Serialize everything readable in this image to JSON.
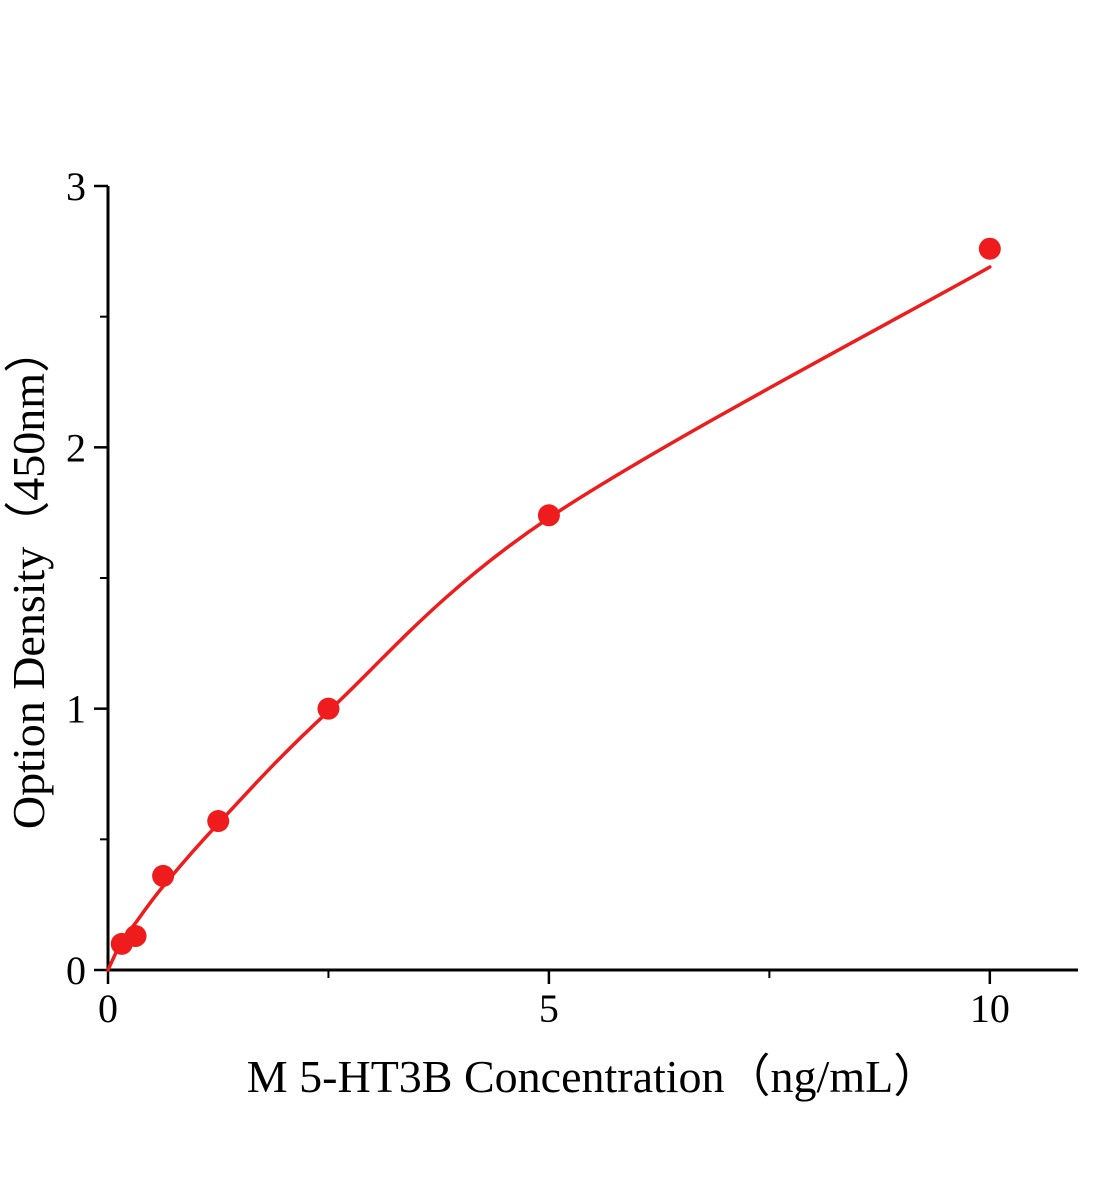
{
  "chart_data": {
    "type": "scatter",
    "title": "",
    "xlabel": "M 5-HT3B Concentration（ng/mL）",
    "ylabel": "Option Density（450nm）",
    "xlim": [
      0,
      11
    ],
    "ylim": [
      0,
      3
    ],
    "x_major_ticks": [
      0,
      5,
      10
    ],
    "x_minor_ticks": [
      2.5,
      7.5
    ],
    "y_major_ticks": [
      0,
      1,
      2,
      3
    ],
    "y_minor_ticks": [
      0.5,
      1.5,
      2.5
    ],
    "grid": false,
    "legend": null,
    "point_color": "#ee1c1c",
    "line_color": "#ee1c1c",
    "axis_color": "#000000",
    "points": [
      {
        "x": 0.156,
        "y": 0.1
      },
      {
        "x": 0.3125,
        "y": 0.13
      },
      {
        "x": 0.625,
        "y": 0.36
      },
      {
        "x": 1.25,
        "y": 0.57
      },
      {
        "x": 2.5,
        "y": 1.0
      },
      {
        "x": 5,
        "y": 1.74
      },
      {
        "x": 10,
        "y": 2.76
      }
    ],
    "curve_points": [
      [
        0,
        0
      ],
      [
        0.156,
        0.11
      ],
      [
        0.3125,
        0.18
      ],
      [
        0.625,
        0.32
      ],
      [
        1.25,
        0.56
      ],
      [
        2.5,
        0.99
      ],
      [
        5,
        1.73
      ],
      [
        10,
        2.69
      ]
    ]
  }
}
